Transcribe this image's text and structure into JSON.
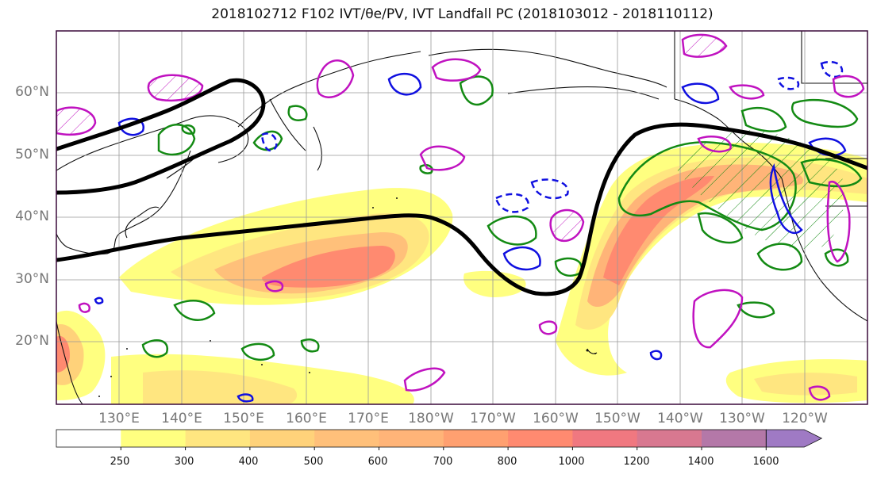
{
  "title": "2018102712 F102 IVT/θe/PV, IVT Landfall PC (2018103012 - 2018110112)",
  "map": {
    "lat_labels": [
      "60°N",
      "50°N",
      "40°N",
      "30°N",
      "20°N"
    ],
    "lon_labels": [
      "130°E",
      "140°E",
      "150°E",
      "160°E",
      "170°E",
      "180°W",
      "170°W",
      "160°W",
      "150°W",
      "140°W",
      "130°W",
      "120°W"
    ]
  },
  "colorbar": {
    "ticks": [
      "250",
      "300",
      "400",
      "500",
      "600",
      "700",
      "800",
      "1000",
      "1200",
      "1400",
      "1600"
    ],
    "colors": [
      "#ffffff",
      "#ffff80",
      "#ffe680",
      "#ffd27a",
      "#ffc07a",
      "#ffb478",
      "#ffa070",
      "#ff8a70",
      "#f07880",
      "#d87890",
      "#b478a8",
      "#9f7ac4"
    ]
  },
  "contour_colors": {
    "theta_e": "#000000",
    "green": "#138a13",
    "blue": "#1010e0",
    "magenta": "#c012c0"
  }
}
